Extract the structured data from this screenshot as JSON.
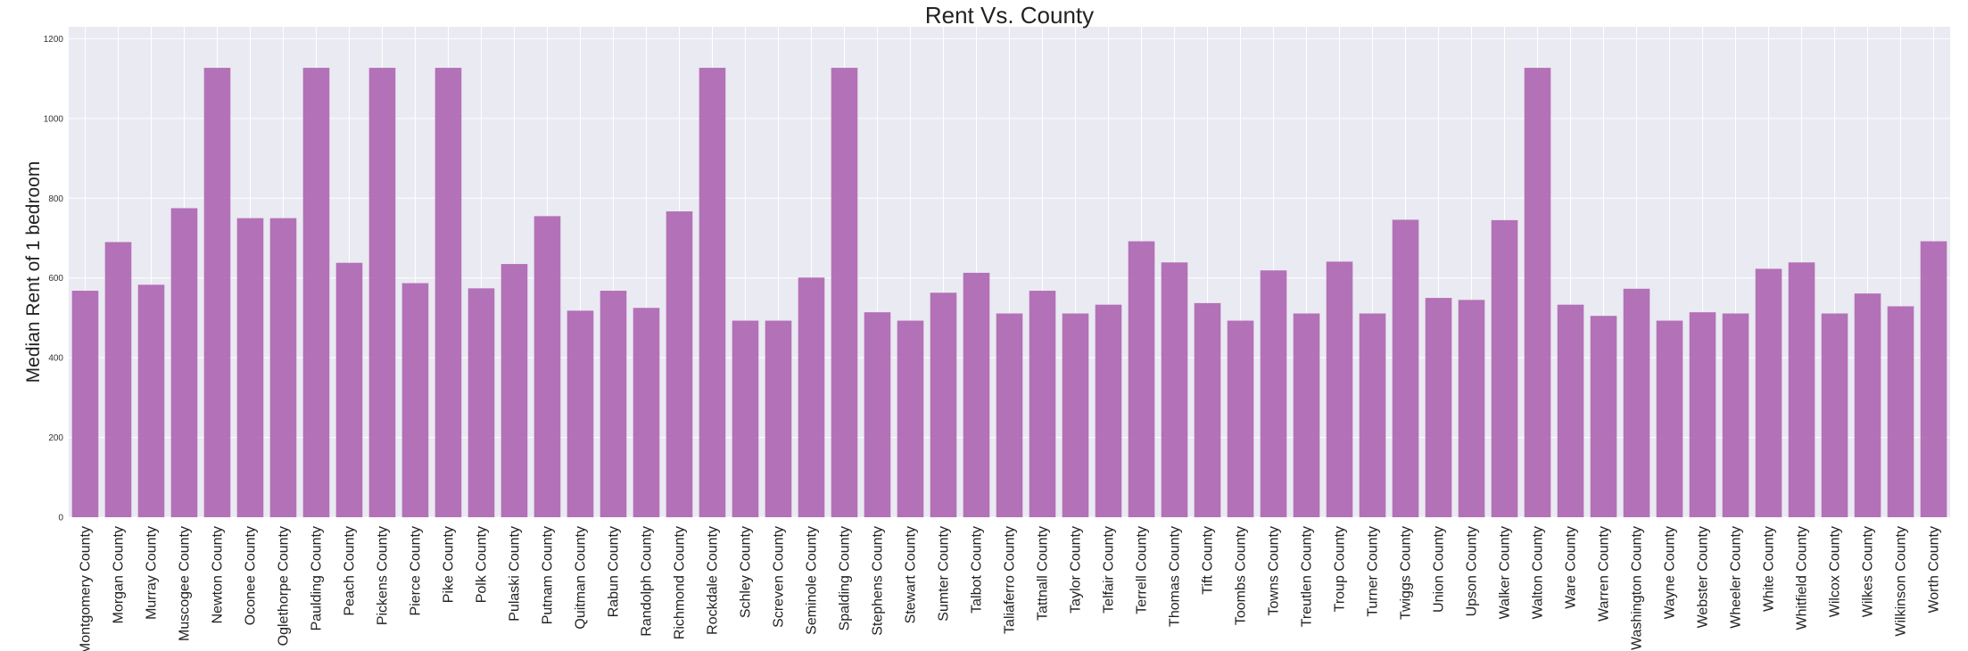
{
  "chart_data": {
    "type": "bar",
    "title": "Rent Vs. County",
    "xlabel": "",
    "ylabel": "Median Rent of 1 bedroom",
    "ylim": [
      0,
      1230
    ],
    "yticks": [
      0,
      200,
      400,
      600,
      800,
      1000,
      1200
    ],
    "grid": true,
    "bar_color": "#b06ab3",
    "background_color": "#eaeaf2",
    "categories": [
      "Montgomery County",
      "Morgan County",
      "Murray County",
      "Muscogee County",
      "Newton County",
      "Oconee County",
      "Oglethorpe County",
      "Paulding County",
      "Peach County",
      "Pickens County",
      "Pierce County",
      "Pike County",
      "Polk County",
      "Pulaski County",
      "Putnam County",
      "Quitman County",
      "Rabun County",
      "Randolph County",
      "Richmond County",
      "Rockdale County",
      "Schley County",
      "Screven County",
      "Seminole County",
      "Spalding County",
      "Stephens County",
      "Stewart County",
      "Sumter County",
      "Talbot County",
      "Taliaferro County",
      "Tattnall County",
      "Taylor County",
      "Telfair County",
      "Terrell County",
      "Thomas County",
      "Tift County",
      "Toombs County",
      "Towns County",
      "Treutlen County",
      "Troup County",
      "Turner County",
      "Twiggs County",
      "Union County",
      "Upson County",
      "Walker County",
      "Walton County",
      "Ware County",
      "Warren County",
      "Washington County",
      "Wayne County",
      "Webster County",
      "Wheeler County",
      "White County",
      "Whitfield County",
      "Wilcox County",
      "Wilkes County",
      "Wilkinson County",
      "Worth County"
    ],
    "values": [
      568,
      690,
      583,
      775,
      1127,
      750,
      750,
      1127,
      638,
      1127,
      587,
      1127,
      574,
      635,
      755,
      518,
      568,
      525,
      767,
      1127,
      493,
      493,
      601,
      1127,
      514,
      493,
      563,
      613,
      511,
      568,
      511,
      533,
      692,
      639,
      537,
      493,
      619,
      511,
      641,
      511,
      746,
      550,
      545,
      745,
      1127,
      533,
      505,
      573,
      493,
      514,
      511,
      623,
      639,
      511,
      561,
      529,
      692
    ]
  }
}
